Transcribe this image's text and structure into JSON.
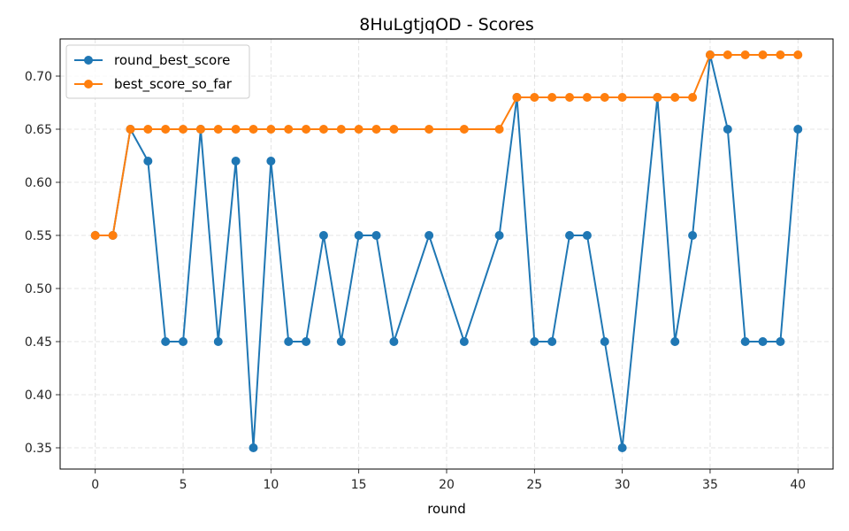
{
  "chart_data": {
    "type": "line",
    "title": "8HuLgtjqOD - Scores",
    "xlabel": "round",
    "ylabel": "",
    "xlim": [
      -2,
      42
    ],
    "ylim": [
      0.33,
      0.735
    ],
    "xticks": [
      0,
      5,
      10,
      15,
      20,
      25,
      30,
      35,
      40
    ],
    "xtick_labels": [
      "0",
      "5",
      "10",
      "15",
      "20",
      "25",
      "30",
      "35",
      "40"
    ],
    "yticks": [
      0.35,
      0.4,
      0.45,
      0.5,
      0.55,
      0.6,
      0.65,
      0.7
    ],
    "ytick_labels": [
      "0.35",
      "0.40",
      "0.45",
      "0.50",
      "0.55",
      "0.60",
      "0.65",
      "0.70"
    ],
    "grid": true,
    "legend_position": "top-left",
    "series": [
      {
        "name": "round_best_score",
        "color": "#1f77b4",
        "marker": "circle",
        "x": [
          0,
          1,
          2,
          3,
          4,
          5,
          6,
          7,
          8,
          9,
          10,
          11,
          12,
          13,
          14,
          15,
          16,
          17,
          19,
          21,
          23,
          24,
          25,
          26,
          27,
          28,
          29,
          30,
          32,
          33,
          34,
          35,
          36,
          37,
          38,
          39,
          40
        ],
        "y": [
          0.55,
          0.55,
          0.65,
          0.62,
          0.45,
          0.45,
          0.65,
          0.45,
          0.62,
          0.35,
          0.62,
          0.45,
          0.45,
          0.55,
          0.45,
          0.55,
          0.55,
          0.45,
          0.55,
          0.45,
          0.55,
          0.68,
          0.45,
          0.45,
          0.55,
          0.55,
          0.45,
          0.35,
          0.68,
          0.45,
          0.55,
          0.72,
          0.65,
          0.45,
          0.45,
          0.45,
          0.65
        ]
      },
      {
        "name": "best_score_so_far",
        "color": "#ff7f0e",
        "marker": "circle",
        "x": [
          0,
          1,
          2,
          3,
          4,
          5,
          6,
          7,
          8,
          9,
          10,
          11,
          12,
          13,
          14,
          15,
          16,
          17,
          19,
          21,
          23,
          24,
          25,
          26,
          27,
          28,
          29,
          30,
          32,
          33,
          34,
          35,
          36,
          37,
          38,
          39,
          40
        ],
        "y": [
          0.55,
          0.55,
          0.65,
          0.65,
          0.65,
          0.65,
          0.65,
          0.65,
          0.65,
          0.65,
          0.65,
          0.65,
          0.65,
          0.65,
          0.65,
          0.65,
          0.65,
          0.65,
          0.65,
          0.65,
          0.65,
          0.68,
          0.68,
          0.68,
          0.68,
          0.68,
          0.68,
          0.68,
          0.68,
          0.68,
          0.68,
          0.72,
          0.72,
          0.72,
          0.72,
          0.72,
          0.72
        ]
      }
    ]
  }
}
